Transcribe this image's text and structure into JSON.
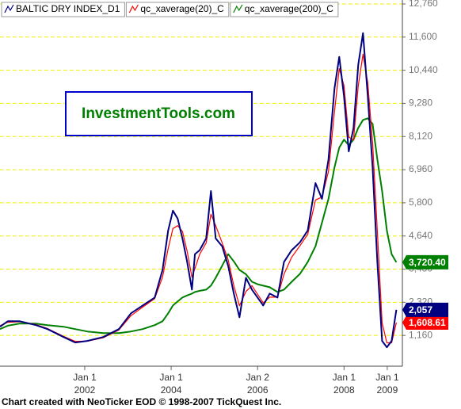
{
  "chart_data": {
    "type": "line",
    "watermark": "InvestmentTools.com",
    "footer": "Chart created with NeoTicker EOD © 1998-2007 TickQuest Inc.",
    "legend": "top-left",
    "grid": true,
    "x": [
      2000.04,
      2000.22,
      2000.5,
      2000.87,
      2001.14,
      2001.51,
      2001.78,
      2002.06,
      2002.43,
      2002.79,
      2003.07,
      2003.34,
      2003.62,
      2003.8,
      2003.93,
      2004.04,
      2004.15,
      2004.26,
      2004.37,
      2004.48,
      2004.55,
      2004.66,
      2004.81,
      2004.92,
      2005.03,
      2005.18,
      2005.32,
      2005.45,
      2005.58,
      2005.73,
      2005.87,
      2006.0,
      2006.13,
      2006.28,
      2006.46,
      2006.61,
      2006.79,
      2006.98,
      2007.16,
      2007.34,
      2007.49,
      2007.64,
      2007.78,
      2007.89,
      2008.0,
      2008.11,
      2008.22,
      2008.33,
      2008.44,
      2008.55,
      2008.66,
      2008.77,
      2008.88,
      2008.99,
      2009.1,
      2009.21
    ],
    "xlim": [
      2000.04,
      2009.35
    ],
    "xticks": [
      {
        "value": 2002.0,
        "label": "Jan 1"
      },
      {
        "value": 2004.0,
        "label": "Jan 1"
      },
      {
        "value": 2006.0,
        "label": "Jan 2"
      },
      {
        "value": 2008.0,
        "label": "Jan 1"
      },
      {
        "value": 2009.0,
        "label": "Jan 1"
      }
    ],
    "xtick_sublabels": [
      "2002",
      "2004",
      "2006",
      "2008",
      "2009"
    ],
    "ylim": [
      83,
      12898
    ],
    "yticks": [
      {
        "value": 1160,
        "label": "1,160"
      },
      {
        "value": 2320,
        "label": "2,320"
      },
      {
        "value": 3480,
        "label": "3,480"
      },
      {
        "value": 4640,
        "label": "4,640"
      },
      {
        "value": 5800,
        "label": "5,800"
      },
      {
        "value": 6960,
        "label": "6,960"
      },
      {
        "value": 8120,
        "label": "8,120"
      },
      {
        "value": 9280,
        "label": "9,280"
      },
      {
        "value": 10440,
        "label": "10,440"
      },
      {
        "value": 11600,
        "label": "11,600"
      },
      {
        "value": 12760,
        "label": "12,760"
      }
    ],
    "series": [
      {
        "name": "qc_xaverage(200)_C",
        "color": "#008000",
        "values": [
          1381,
          1500,
          1574,
          1574,
          1519,
          1464,
          1380,
          1298,
          1243,
          1243,
          1298,
          1381,
          1519,
          1657,
          1933,
          2209,
          2350,
          2486,
          2560,
          2624,
          2680,
          2720,
          2762,
          2900,
          3176,
          3600,
          4005,
          3750,
          3452,
          3300,
          3038,
          2950,
          2900,
          2845,
          2679,
          2762,
          3038,
          3314,
          3729,
          4281,
          5110,
          5938,
          7043,
          7734,
          8010,
          7817,
          8010,
          8425,
          8701,
          8756,
          8562,
          7319,
          6214,
          4833,
          4005,
          3720.4
        ],
        "value_labels": [
          null,
          null,
          null,
          null,
          null,
          null,
          null,
          null,
          null,
          null,
          null,
          null,
          null,
          null,
          null,
          null,
          null,
          null,
          null,
          null,
          null,
          null,
          null,
          null,
          null,
          null,
          null,
          null,
          null,
          null,
          null,
          null,
          null,
          null,
          null,
          null,
          null,
          null,
          null,
          null,
          null,
          null,
          null,
          null,
          null,
          null,
          null,
          null,
          null,
          null,
          null,
          null,
          null,
          null,
          null,
          "3,720.40"
        ]
      },
      {
        "name": "qc_xaverage(20)_C",
        "color": "#ff0000",
        "values": [
          1500,
          1620,
          1640,
          1540,
          1400,
          1130,
          950,
          960,
          1080,
          1350,
          1850,
          2150,
          2450,
          3200,
          4200,
          4900,
          5000,
          4800,
          4100,
          3200,
          3500,
          4000,
          4400,
          5400,
          5000,
          4400,
          3800,
          2900,
          2200,
          2700,
          2900,
          2600,
          2300,
          2500,
          2500,
          3300,
          3900,
          4300,
          4700,
          5900,
          6000,
          6900,
          9000,
          10500,
          9900,
          8100,
          8000,
          9900,
          11000,
          10000,
          7900,
          4800,
          1600,
          900,
          900,
          1608.61
        ],
        "value_labels": [
          null,
          null,
          null,
          null,
          null,
          null,
          null,
          null,
          null,
          null,
          null,
          null,
          null,
          null,
          null,
          null,
          null,
          null,
          null,
          null,
          null,
          null,
          null,
          null,
          null,
          null,
          null,
          null,
          null,
          null,
          null,
          null,
          null,
          null,
          null,
          null,
          null,
          null,
          null,
          null,
          null,
          null,
          null,
          null,
          null,
          null,
          null,
          null,
          null,
          null,
          null,
          null,
          null,
          null,
          null,
          "1,608.61"
        ]
      },
      {
        "name": "BALTIC DRY INDEX_D1",
        "color": "#000080",
        "values": [
          1464,
          1657,
          1657,
          1519,
          1381,
          1105,
          911,
          967,
          1105,
          1381,
          1933,
          2209,
          2486,
          3452,
          4833,
          5524,
          5248,
          4557,
          3729,
          2762,
          4005,
          4143,
          4557,
          6214,
          4557,
          4281,
          3590,
          2624,
          1795,
          3176,
          2762,
          2486,
          2209,
          2624,
          2486,
          3729,
          4143,
          4419,
          4833,
          6491,
          5938,
          7319,
          9805,
          10910,
          9529,
          7596,
          8425,
          10634,
          11738,
          9529,
          7043,
          3729,
          967,
          746,
          967,
          2057
        ],
        "value_labels": [
          null,
          null,
          null,
          null,
          null,
          null,
          null,
          null,
          null,
          null,
          null,
          null,
          null,
          null,
          null,
          null,
          null,
          null,
          null,
          null,
          null,
          null,
          null,
          null,
          null,
          null,
          null,
          null,
          null,
          null,
          null,
          null,
          null,
          null,
          null,
          null,
          null,
          null,
          null,
          null,
          null,
          null,
          null,
          null,
          null,
          null,
          null,
          null,
          null,
          null,
          null,
          null,
          null,
          null,
          null,
          "2,057"
        ]
      }
    ]
  }
}
